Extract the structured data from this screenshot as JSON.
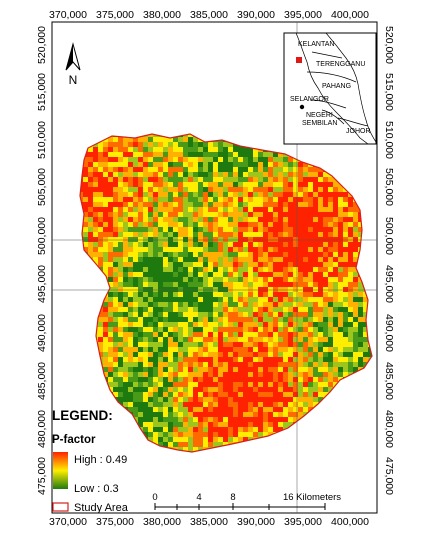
{
  "map": {
    "top_ticks": [
      "370,000",
      "375,000",
      "380,000",
      "385,000",
      "390,000",
      "395,000",
      "400,000"
    ],
    "bottom_ticks": [
      "370,000",
      "375,000",
      "380,000",
      "385,000",
      "390,000",
      "395,000",
      "400,000"
    ],
    "left_ticks": [
      "520,000",
      "515,000",
      "510,000",
      "505,000",
      "500,000",
      "495,000",
      "490,000",
      "485,000",
      "480,000",
      "475,000"
    ],
    "right_ticks": [
      "520,000",
      "515,000",
      "510,000",
      "505,000",
      "500,000",
      "495,000",
      "490,000",
      "485,000",
      "480,000",
      "475,000"
    ],
    "north_label": "N"
  },
  "inset": {
    "labels": [
      "KELANTAN",
      "TERENGGANU",
      "PAHANG",
      "SELANGOR",
      "NEGERI",
      "SEMBILAN",
      "JOHOR"
    ]
  },
  "legend": {
    "title": "LEGEND:",
    "subtitle": "P-factor",
    "high": "High : 0.49",
    "low": "Low : 0.3",
    "study_area": "Study Area",
    "colors": {
      "high": "#ff2200",
      "mid": "#ffee00",
      "low": "#1e7a0f",
      "boundary": "#d42020"
    }
  },
  "scale_bar": {
    "labels": [
      "0",
      "4",
      "8",
      "16 Kilometers"
    ]
  }
}
